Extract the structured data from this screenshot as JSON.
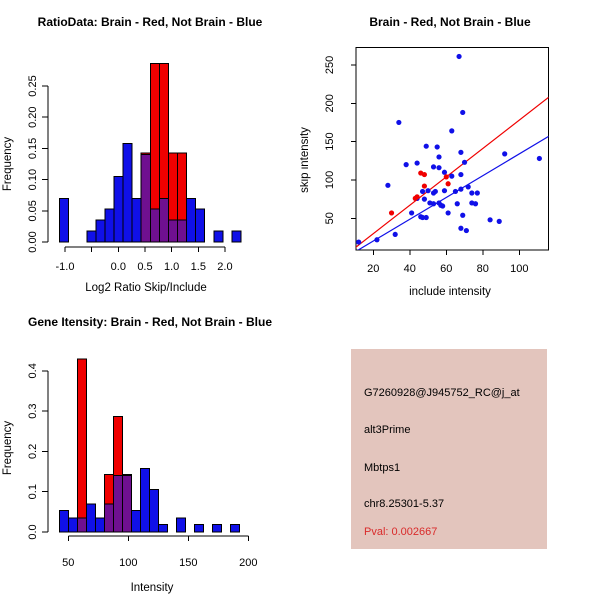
{
  "colors": {
    "red": "#F00000",
    "blue": "#1010E8",
    "overlap_purple": "#6F1090",
    "panel_bg": "#E3C5BD",
    "pval_text": "#D92B2B",
    "axis": "#000000"
  },
  "chart_data": [
    {
      "type": "bar",
      "name": "ratio-histogram",
      "title": "RatioData: Brain - Red, Not Brain - Blue",
      "xlabel": "Log2 Ratio Skip/Include",
      "ylabel": "Frequency",
      "legend": [
        {
          "label": "Brain",
          "color": "red"
        },
        {
          "label": "Not Brain",
          "color": "blue"
        }
      ],
      "bin_width": 0.17,
      "bins_left": [
        -1.1,
        -0.93,
        -0.76,
        -0.59,
        -0.42,
        -0.25,
        -0.08,
        0.09,
        0.26,
        0.43,
        0.6,
        0.77,
        0.94,
        1.11,
        1.28,
        1.45,
        1.62,
        1.79,
        1.96,
        2.13
      ],
      "series": [
        {
          "name": "Not Brain (blue)",
          "values": [
            0.07,
            0,
            0,
            0.018,
            0.035,
            0.053,
            0.105,
            0.158,
            0.07,
            0.14,
            0.053,
            0.07,
            0.035,
            0.035,
            0.07,
            0.053,
            0,
            0.018,
            0,
            0.018
          ]
        },
        {
          "name": "Brain (red)",
          "values": [
            0,
            0,
            0,
            0,
            0,
            0,
            0,
            0,
            0,
            0.143,
            0.286,
            0.286,
            0.143,
            0.143,
            0,
            0,
            0,
            0,
            0,
            0
          ]
        }
      ],
      "x_ticks": [
        {
          "v": -1.0,
          "label": "-1.0"
        },
        {
          "v": -0.5,
          "label": ""
        },
        {
          "v": 0.0,
          "label": "0.0"
        },
        {
          "v": 0.5,
          "label": "0.5"
        },
        {
          "v": 1.0,
          "label": "1.0"
        },
        {
          "v": 1.5,
          "label": "1.5"
        },
        {
          "v": 2.0,
          "label": "2.0"
        }
      ],
      "y_ticks": [
        {
          "v": 0.0,
          "label": "0.00"
        },
        {
          "v": 0.05,
          "label": "0.05"
        },
        {
          "v": 0.1,
          "label": "0.10"
        },
        {
          "v": 0.15,
          "label": "0.15"
        },
        {
          "v": 0.2,
          "label": "0.20"
        },
        {
          "v": 0.25,
          "label": "0.25"
        }
      ],
      "xlim": [
        -1.3,
        2.4
      ],
      "ylim": [
        0,
        0.29
      ],
      "grid": false
    },
    {
      "type": "scatter",
      "name": "intensity-scatter",
      "title": "Brain - Red, Not Brain - Blue",
      "xlabel": "include intensity",
      "ylabel": "skip intensity",
      "legend": [
        {
          "label": "Brain",
          "color": "red"
        },
        {
          "label": "Not Brain",
          "color": "blue"
        }
      ],
      "x_ticks": [
        {
          "v": 20,
          "label": "20"
        },
        {
          "v": 40,
          "label": "40"
        },
        {
          "v": 60,
          "label": "60"
        },
        {
          "v": 80,
          "label": "80"
        },
        {
          "v": 100,
          "label": "100"
        }
      ],
      "y_ticks": [
        {
          "v": 50,
          "label": "50"
        },
        {
          "v": 100,
          "label": "100"
        },
        {
          "v": 150,
          "label": "150"
        },
        {
          "v": 200,
          "label": "200"
        },
        {
          "v": 250,
          "label": "250"
        }
      ],
      "xlim": [
        10.5,
        116
      ],
      "ylim": [
        8.7,
        272.4
      ],
      "blue_points": [
        [
          67,
          261
        ],
        [
          69,
          188
        ],
        [
          34,
          175
        ],
        [
          63,
          164
        ],
        [
          49,
          144
        ],
        [
          55,
          143
        ],
        [
          56,
          130
        ],
        [
          68,
          136
        ],
        [
          38,
          120
        ],
        [
          44,
          122
        ],
        [
          53,
          117
        ],
        [
          56,
          116
        ],
        [
          59,
          110
        ],
        [
          63,
          105
        ],
        [
          68,
          107
        ],
        [
          70,
          123
        ],
        [
          28,
          93
        ],
        [
          47,
          85
        ],
        [
          50,
          86
        ],
        [
          53,
          83
        ],
        [
          54,
          85
        ],
        [
          58,
          66
        ],
        [
          59,
          86
        ],
        [
          65,
          85
        ],
        [
          68,
          88
        ],
        [
          72,
          91
        ],
        [
          74,
          83
        ],
        [
          77,
          83
        ],
        [
          44,
          76
        ],
        [
          48,
          75
        ],
        [
          51,
          70
        ],
        [
          53,
          69
        ],
        [
          56,
          70
        ],
        [
          57,
          67
        ],
        [
          66,
          69
        ],
        [
          74,
          70
        ],
        [
          76,
          69
        ],
        [
          41,
          57
        ],
        [
          46,
          52
        ],
        [
          47,
          51
        ],
        [
          49,
          51
        ],
        [
          61,
          57
        ],
        [
          69,
          54
        ],
        [
          84,
          48
        ],
        [
          89,
          46
        ],
        [
          68,
          37
        ],
        [
          71,
          34
        ],
        [
          32,
          29
        ],
        [
          22,
          22
        ],
        [
          12,
          19
        ],
        [
          111,
          128
        ],
        [
          92,
          134
        ]
      ],
      "red_points": [
        [
          46,
          109
        ],
        [
          48,
          107
        ],
        [
          60,
          104
        ],
        [
          61,
          95
        ],
        [
          48,
          92
        ],
        [
          44,
          78
        ],
        [
          43,
          76
        ],
        [
          30,
          57
        ]
      ],
      "red_line": {
        "slope": 1.85,
        "intercept": -7
      },
      "blue_line": {
        "slope": 1.42,
        "intercept": -8
      },
      "grid": false
    },
    {
      "type": "bar",
      "name": "gene-intensity-histogram",
      "title": "Gene Itensity: Brain - Red, Not Brain - Blue",
      "xlabel": "Intensity",
      "ylabel": "Frequency",
      "legend": [
        {
          "label": "Brain",
          "color": "red"
        },
        {
          "label": "Not Brain",
          "color": "blue"
        }
      ],
      "bin_width": 7.5,
      "bins_left": [
        42.5,
        50,
        57.5,
        65,
        72.5,
        80,
        87.5,
        95,
        102.5,
        110,
        117.5,
        125,
        132.5,
        140,
        147.5,
        155,
        162.5,
        170,
        177.5,
        185
      ],
      "series": [
        {
          "name": "Not Brain (blue)",
          "values": [
            0.053,
            0.035,
            0.035,
            0.07,
            0.035,
            0.07,
            0.14,
            0.14,
            0.053,
            0.158,
            0.105,
            0.018,
            0,
            0.035,
            0,
            0.018,
            0,
            0.018,
            0,
            0.018
          ]
        },
        {
          "name": "Brain (red)",
          "values": [
            0,
            0,
            0.429,
            0,
            0,
            0.143,
            0.286,
            0.143,
            0,
            0,
            0,
            0,
            0,
            0,
            0,
            0,
            0,
            0,
            0,
            0
          ]
        }
      ],
      "x_ticks": [
        {
          "v": 50,
          "label": "50"
        },
        {
          "v": 100,
          "label": "100"
        },
        {
          "v": 150,
          "label": "150"
        },
        {
          "v": 200,
          "label": "200"
        }
      ],
      "y_ticks": [
        {
          "v": 0.0,
          "label": "0.0"
        },
        {
          "v": 0.1,
          "label": "0.1"
        },
        {
          "v": 0.2,
          "label": "0.2"
        },
        {
          "v": 0.3,
          "label": "0.3"
        },
        {
          "v": 0.4,
          "label": "0.4"
        }
      ],
      "xlim": [
        40,
        200
      ],
      "ylim": [
        0,
        0.44
      ],
      "grid": false
    }
  ],
  "info_panel": {
    "lines": [
      "G7260928@J945752_RC@j_at",
      "alt3Prime",
      "Mbtps1",
      "chr8.25301-5.37",
      "Pval: 0.002667"
    ]
  }
}
